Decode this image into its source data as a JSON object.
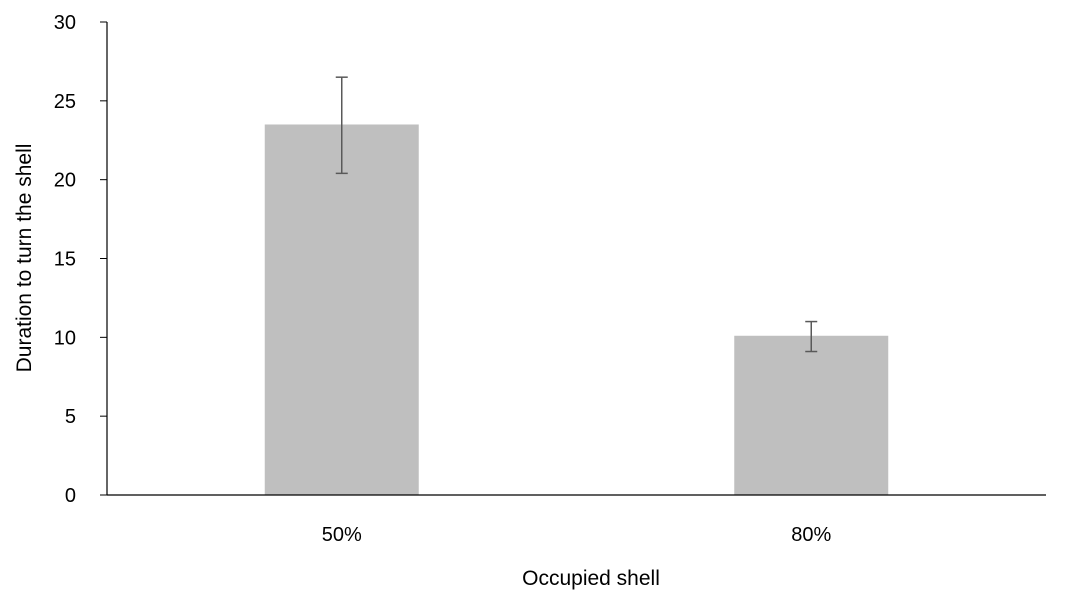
{
  "chart_data": {
    "type": "bar",
    "title": "",
    "xlabel": "Occupied shell",
    "ylabel": "Duration to turn the shell",
    "categories": [
      "50%",
      "80%"
    ],
    "series": [
      {
        "values": [
          23.5,
          10.1
        ],
        "error_low": [
          20.4,
          9.1
        ],
        "error_high": [
          26.5,
          11.0
        ]
      }
    ],
    "ylim": [
      0,
      30
    ],
    "yticks": [
      0,
      5,
      10,
      15,
      20,
      25,
      30
    ],
    "grid": false,
    "legend": "none",
    "colors": {
      "bar": "#bfbfbf",
      "axis": "#000000",
      "error_bar": "#595959"
    }
  }
}
